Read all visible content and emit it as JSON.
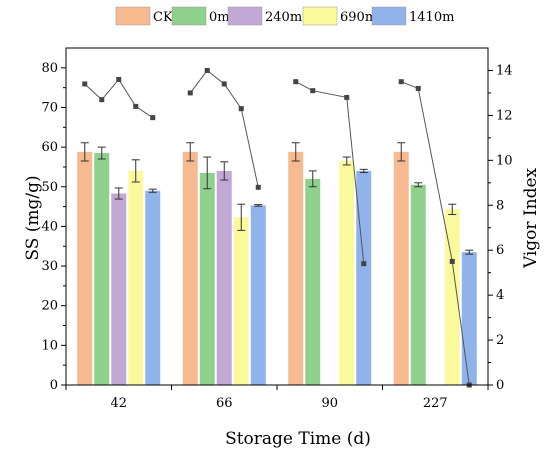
{
  "chart_data": {
    "type": "bar",
    "categories": [
      "42",
      "66",
      "90",
      "227"
    ],
    "xlabel": "Storage Time (d)",
    "ylabel": "SS (mg/g)",
    "y2label": "Vigor Index",
    "ylim": [
      0,
      85
    ],
    "y2lim": [
      0,
      15
    ],
    "yticks": [
      0,
      10,
      20,
      30,
      40,
      50,
      60,
      70,
      80
    ],
    "y2ticks": [
      0,
      2,
      4,
      6,
      8,
      10,
      12,
      14
    ],
    "legend_position": "top",
    "series": [
      {
        "name": "CK",
        "color": "#f7b98f",
        "values": [
          58.8,
          58.8,
          58.8,
          58.8
        ],
        "errors": [
          2.3,
          2.3,
          2.3,
          2.3
        ]
      },
      {
        "name": "0m",
        "color": "#8fd18c",
        "values": [
          58.5,
          53.5,
          52.0,
          50.5
        ],
        "errors": [
          1.5,
          4.0,
          2.0,
          0.5
        ]
      },
      {
        "name": "240m",
        "color": "#c2a8d4",
        "values": [
          48.3,
          54.0,
          null,
          null
        ],
        "errors": [
          1.4,
          2.3,
          null,
          null
        ]
      },
      {
        "name": "690m",
        "color": "#fafa9c",
        "values": [
          54.0,
          42.3,
          56.5,
          44.3
        ],
        "errors": [
          2.8,
          3.3,
          1.0,
          1.3
        ]
      },
      {
        "name": "1410m",
        "color": "#8fb3ea",
        "values": [
          49.0,
          45.3,
          54.0,
          33.5
        ],
        "errors": [
          0.4,
          0.2,
          0.4,
          0.5
        ]
      }
    ],
    "vigor_index": [
      {
        "category": "42",
        "values": [
          13.4,
          12.7,
          13.6,
          12.4,
          11.9
        ]
      },
      {
        "category": "66",
        "values": [
          13.0,
          14.0,
          13.4,
          12.3,
          8.8
        ]
      },
      {
        "category": "90",
        "values": [
          13.5,
          13.1,
          null,
          12.8,
          5.4
        ]
      },
      {
        "category": "227",
        "values": [
          13.5,
          13.2,
          null,
          5.5,
          0.0
        ]
      }
    ]
  }
}
